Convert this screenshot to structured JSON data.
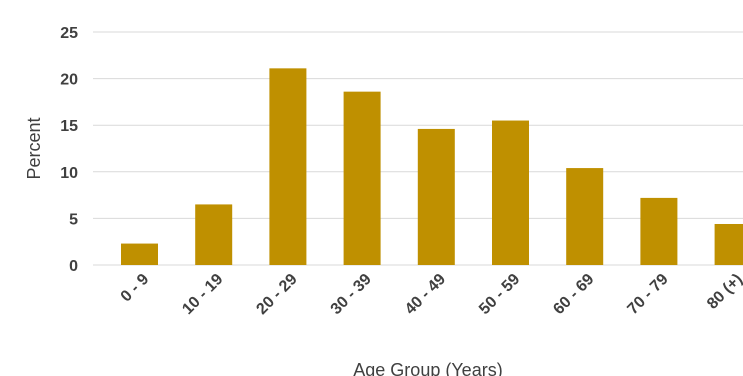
{
  "chart_data": {
    "type": "bar",
    "categories": [
      "0 - 9",
      "10 - 19",
      "20 - 29",
      "30 - 39",
      "40 - 49",
      "50 - 59",
      "60 - 69",
      "70 - 79",
      "80 (+)"
    ],
    "values": [
      2.3,
      6.5,
      21.1,
      18.6,
      14.6,
      15.5,
      10.4,
      7.2,
      4.4
    ],
    "title": "",
    "xlabel": "Age Group (Years)",
    "ylabel": "Percent",
    "ylim": [
      0,
      25
    ],
    "yticks": [
      0,
      5,
      10,
      15,
      20,
      25
    ],
    "grid": true,
    "bar_color": "#bf9000"
  }
}
